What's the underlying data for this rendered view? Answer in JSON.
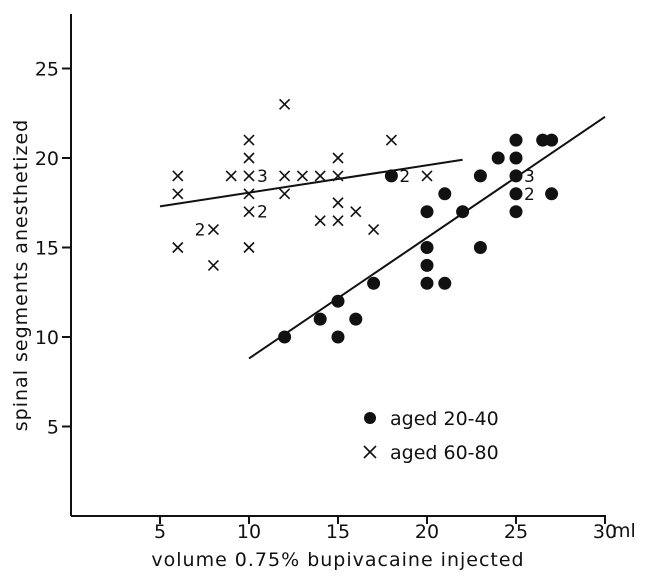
{
  "chart_data": {
    "type": "scatter",
    "title": "",
    "xlabel": "volume 0.75% bupivacaine injected",
    "x_unit": "ml",
    "ylabel": "spinal segments anesthetized",
    "xlim": [
      0,
      30
    ],
    "ylim": [
      0,
      27
    ],
    "x_ticks": [
      5,
      10,
      15,
      20,
      25,
      30
    ],
    "y_ticks": [
      5,
      10,
      15,
      20,
      25
    ],
    "grid": false,
    "legend_position": "bottom-right",
    "series": [
      {
        "name": "aged 20-40",
        "marker": "filled-circle",
        "points": [
          [
            12,
            10
          ],
          [
            14,
            11
          ],
          [
            15,
            12
          ],
          [
            15,
            10
          ],
          [
            16,
            11
          ],
          [
            17,
            13
          ],
          [
            18,
            19
          ],
          [
            20,
            17
          ],
          [
            20,
            15
          ],
          [
            20,
            14
          ],
          [
            20,
            13
          ],
          [
            21,
            18
          ],
          [
            21,
            13
          ],
          [
            22,
            17
          ],
          [
            23,
            19
          ],
          [
            23,
            15
          ],
          [
            24,
            20
          ],
          [
            25,
            21
          ],
          [
            25,
            20
          ],
          [
            25,
            19
          ],
          [
            25,
            18
          ],
          [
            25,
            17
          ],
          [
            26.5,
            21
          ],
          [
            27,
            21
          ],
          [
            27,
            18
          ]
        ],
        "multiplicity_labels": [
          {
            "x": 18,
            "y": 19,
            "count": "2"
          },
          {
            "x": 25,
            "y": 19,
            "count": "3"
          },
          {
            "x": 25,
            "y": 18,
            "count": "2"
          }
        ],
        "fit_line": {
          "x": [
            10,
            30
          ],
          "y": [
            8.8,
            22.3
          ]
        }
      },
      {
        "name": "aged 60-80",
        "marker": "cross",
        "points": [
          [
            6,
            19
          ],
          [
            6,
            18
          ],
          [
            6,
            15
          ],
          [
            8,
            16
          ],
          [
            8,
            14
          ],
          [
            9,
            19
          ],
          [
            10,
            21
          ],
          [
            10,
            20
          ],
          [
            10,
            19
          ],
          [
            10,
            18
          ],
          [
            10,
            17
          ],
          [
            10,
            15
          ],
          [
            12,
            23
          ],
          [
            12,
            19
          ],
          [
            12,
            18
          ],
          [
            13,
            19
          ],
          [
            14,
            19
          ],
          [
            14,
            16.5
          ],
          [
            15,
            20
          ],
          [
            15,
            19
          ],
          [
            15,
            17.5
          ],
          [
            15,
            16.5
          ],
          [
            16,
            17
          ],
          [
            17,
            16
          ],
          [
            18,
            21
          ],
          [
            20,
            19
          ]
        ],
        "multiplicity_labels": [
          {
            "x": 8,
            "y": 16,
            "count": "2"
          },
          {
            "x": 10,
            "y": 19,
            "count": "3"
          },
          {
            "x": 10,
            "y": 17,
            "count": "2"
          }
        ],
        "fit_line": {
          "x": [
            5,
            22
          ],
          "y": [
            17.3,
            19.9
          ]
        }
      }
    ]
  }
}
